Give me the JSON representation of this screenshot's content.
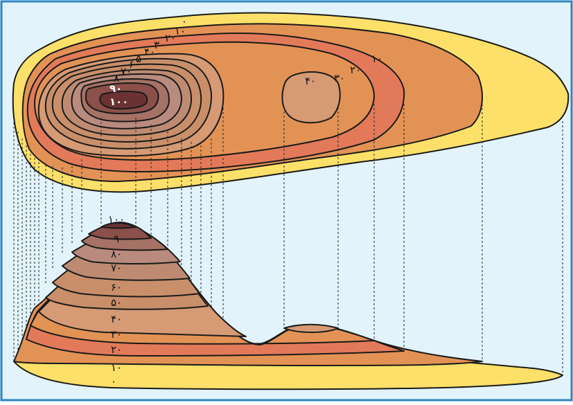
{
  "colors": {
    "background": "#e2f3fb",
    "frame": "#2b86c4",
    "outline": "#1a1a1a",
    "dash": "#222222",
    "bands": [
      "#fde069",
      "#e39255",
      "#e27a5a",
      "#e39256",
      "#d69a74",
      "#c98f6a",
      "#be8b72",
      "#b98b7e",
      "#a57265",
      "#8a5049",
      "#6a3232"
    ]
  },
  "plan_labels": {
    "c0": "۰",
    "c10": "۱۰",
    "c20": "۲۰",
    "c30": "۳۰",
    "c40": "۴۰",
    "c50": "۵۰",
    "c60": "۶۰",
    "c70": "۷۰",
    "c80": "۸۰",
    "c90": "۹۰",
    "c100": "۱۰۰",
    "c10_right": "۱۰",
    "c20_right": "۲۰",
    "c30_right": "۳۰",
    "c40_right": "۴۰"
  },
  "profile_labels": {
    "p100": "۱۰۰",
    "p90": "۹۰",
    "p80": "۸۰",
    "p70": "۷۰",
    "p60": "۶۰",
    "p50": "۵۰",
    "p40": "۴۰",
    "p30": "۳۰",
    "p20": "۲۰",
    "p10": "۱۰",
    "p0": "۰"
  }
}
